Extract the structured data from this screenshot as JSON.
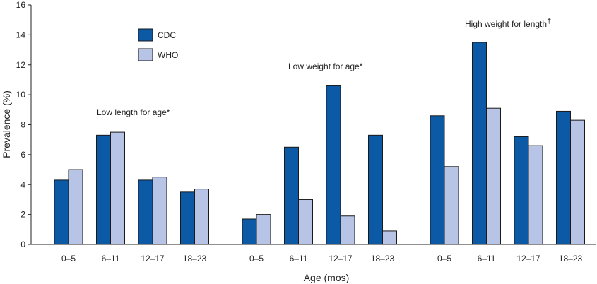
{
  "chart_data": {
    "type": "bar",
    "title": "",
    "xlabel": "Age (mos)",
    "ylabel": "Prevalence (%)",
    "ylim": [
      0,
      16
    ],
    "yticks": [
      0,
      2,
      4,
      6,
      8,
      10,
      12,
      14,
      16
    ],
    "grid": false,
    "legend": {
      "placement": "top-left",
      "entries": [
        {
          "name": "CDC",
          "color": "#0c5aa6"
        },
        {
          "name": "WHO",
          "color": "#b8c4e6"
        }
      ]
    },
    "groups": [
      {
        "label": "Low length for age*",
        "categories": [
          "0–5",
          "6–11",
          "12–17",
          "18–23"
        ],
        "series": [
          {
            "name": "CDC",
            "values": [
              4.3,
              7.3,
              4.3,
              3.5
            ]
          },
          {
            "name": "WHO",
            "values": [
              5.0,
              7.5,
              4.5,
              3.7
            ]
          }
        ]
      },
      {
        "label": "Low weight for age*",
        "categories": [
          "0–5",
          "6–11",
          "12–17",
          "18–23"
        ],
        "series": [
          {
            "name": "CDC",
            "values": [
              1.7,
              6.5,
              10.6,
              7.3
            ]
          },
          {
            "name": "WHO",
            "values": [
              2.0,
              3.0,
              1.9,
              0.9
            ]
          }
        ]
      },
      {
        "label": "High weight for length",
        "label_mark": "†",
        "categories": [
          "0–5",
          "6–11",
          "12–17",
          "18–23"
        ],
        "series": [
          {
            "name": "CDC",
            "values": [
              8.6,
              13.5,
              7.2,
              8.9
            ]
          },
          {
            "name": "WHO",
            "values": [
              5.2,
              9.1,
              6.6,
              8.3
            ]
          }
        ]
      }
    ]
  }
}
